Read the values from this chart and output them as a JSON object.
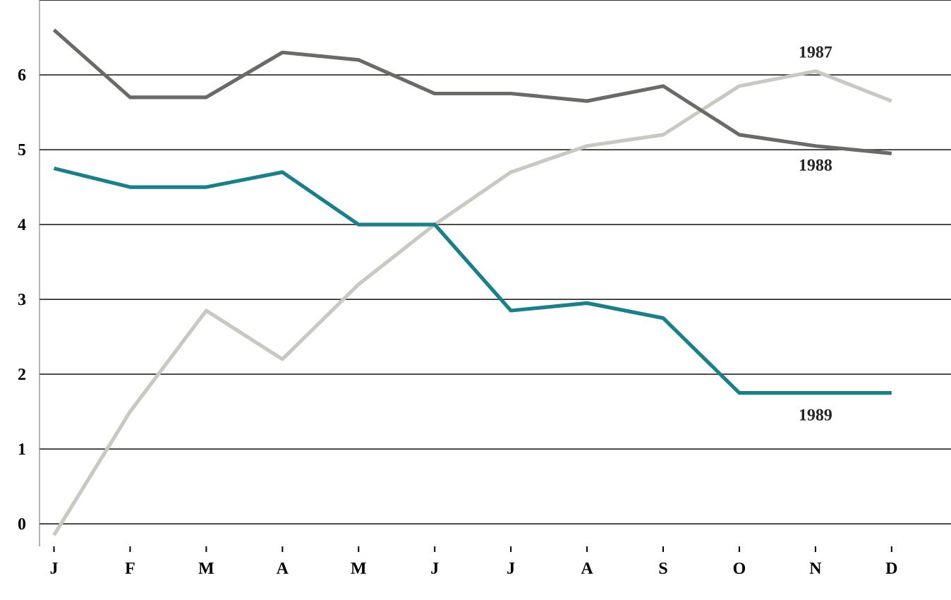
{
  "chart_data": {
    "type": "line",
    "categories": [
      "J",
      "F",
      "M",
      "A",
      "M",
      "J",
      "J",
      "A",
      "S",
      "O",
      "N",
      "D"
    ],
    "series": [
      {
        "name": "1987",
        "color": "#c8cac2",
        "values": [
          -0.15,
          1.5,
          2.85,
          2.2,
          3.2,
          4.0,
          4.7,
          5.05,
          5.2,
          5.85,
          6.05,
          5.65
        ]
      },
      {
        "name": "1988",
        "color": "#6a6b66",
        "values": [
          6.6,
          5.7,
          5.7,
          6.3,
          6.2,
          5.75,
          5.75,
          5.65,
          5.85,
          5.2,
          5.05,
          4.95
        ]
      },
      {
        "name": "1989",
        "color": "#17808a",
        "values": [
          4.75,
          4.5,
          4.5,
          4.7,
          4.0,
          4.0,
          2.85,
          2.95,
          2.75,
          1.75,
          1.75,
          1.75
        ]
      }
    ],
    "ylim": [
      -0.3,
      7
    ],
    "yticks": [
      0,
      1,
      2,
      3,
      4,
      5,
      6,
      {
        "value": 7,
        "label": null
      }
    ],
    "grid": "y",
    "legend": false,
    "marker": "none",
    "line_style": "solid"
  }
}
